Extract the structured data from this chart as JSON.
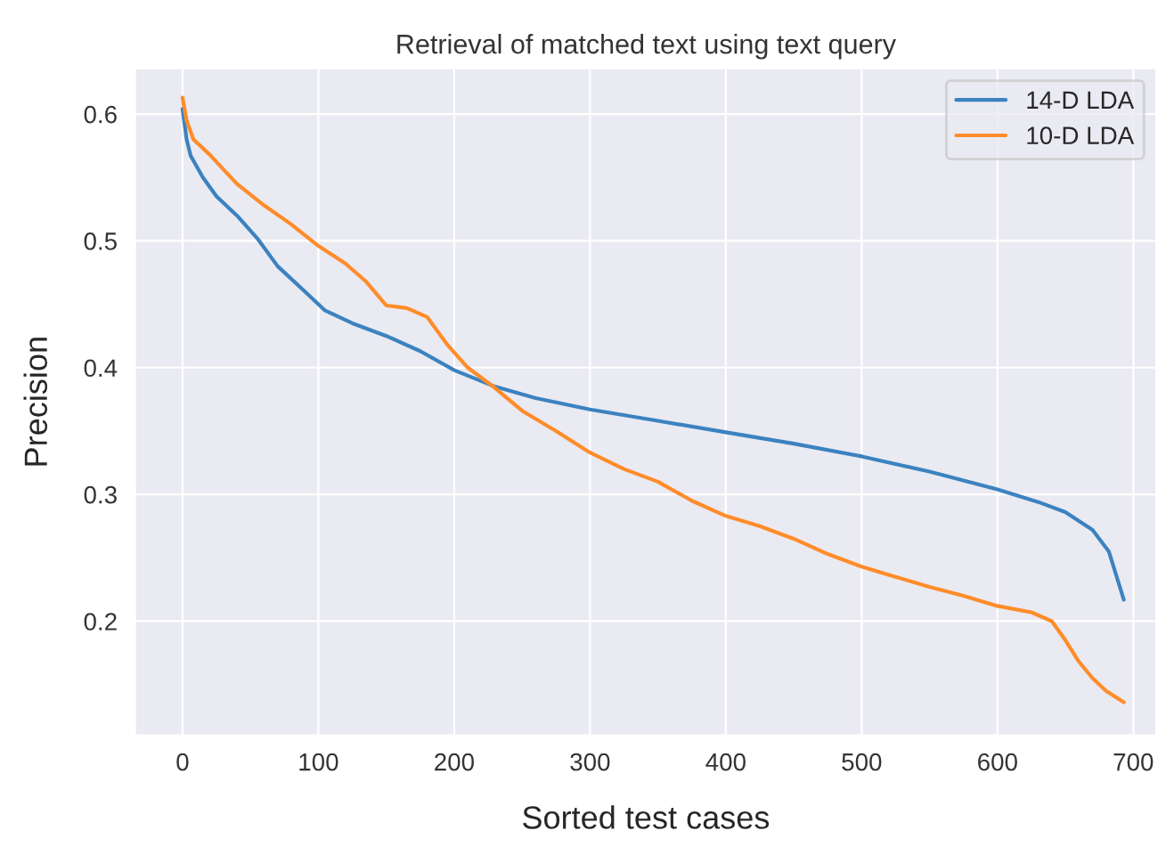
{
  "chart_data": {
    "type": "line",
    "title": "Retrieval of matched text using text query",
    "xlabel": "Sorted test cases",
    "ylabel": "Precision",
    "xlim": [
      -35,
      717
    ],
    "ylim": [
      0.11,
      0.636
    ],
    "xticks": [
      0,
      100,
      200,
      300,
      400,
      500,
      600,
      700
    ],
    "yticks": [
      0.2,
      0.3,
      0.4,
      0.5,
      0.6
    ],
    "grid": true,
    "legend": "top right",
    "series": [
      {
        "name": "14-D LDA",
        "color": "#3b82c0",
        "x": [
          0,
          3,
          6,
          15,
          25,
          40,
          55,
          70,
          90,
          105,
          125,
          150,
          175,
          200,
          230,
          260,
          300,
          350,
          400,
          450,
          500,
          550,
          600,
          630,
          650,
          670,
          682,
          693
        ],
        "values": [
          0.604,
          0.58,
          0.567,
          0.55,
          0.535,
          0.52,
          0.502,
          0.48,
          0.46,
          0.445,
          0.435,
          0.425,
          0.413,
          0.398,
          0.385,
          0.376,
          0.367,
          0.358,
          0.349,
          0.34,
          0.33,
          0.318,
          0.304,
          0.294,
          0.286,
          0.272,
          0.255,
          0.217
        ]
      },
      {
        "name": "10-D LDA",
        "color": "#ff8c2a",
        "x": [
          0,
          3,
          8,
          20,
          40,
          60,
          80,
          100,
          120,
          135,
          150,
          165,
          180,
          195,
          210,
          230,
          250,
          275,
          300,
          325,
          350,
          375,
          400,
          425,
          450,
          475,
          500,
          525,
          550,
          575,
          600,
          625,
          640,
          650,
          660,
          670,
          680,
          693
        ],
        "values": [
          0.613,
          0.595,
          0.58,
          0.568,
          0.545,
          0.528,
          0.513,
          0.496,
          0.482,
          0.468,
          0.449,
          0.447,
          0.44,
          0.418,
          0.4,
          0.384,
          0.366,
          0.35,
          0.333,
          0.32,
          0.31,
          0.295,
          0.283,
          0.275,
          0.265,
          0.253,
          0.243,
          0.235,
          0.227,
          0.22,
          0.212,
          0.207,
          0.2,
          0.185,
          0.168,
          0.155,
          0.145,
          0.136
        ]
      }
    ]
  }
}
